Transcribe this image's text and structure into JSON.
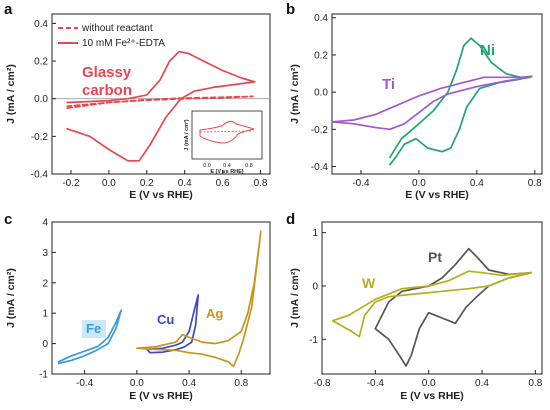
{
  "chart_data": [
    {
      "type": "line",
      "panel": "a",
      "xlabel": "E (V vs RHE)",
      "ylabel": "J (mA / cm²)",
      "xlim": [
        -0.3,
        0.85
      ],
      "ylim": [
        -0.4,
        0.45
      ],
      "xticks": [
        -0.2,
        0.0,
        0.2,
        0.4,
        0.6,
        0.8
      ],
      "xtick_labels": [
        "-0.2",
        "0.0",
        "0.2",
        "0.4",
        "0.6",
        "0.8"
      ],
      "yticks": [
        -0.4,
        -0.2,
        0.0,
        0.2,
        0.4
      ],
      "ytick_labels": [
        "-0.4",
        "-0.2",
        "0.0",
        "0.2",
        "0.4"
      ],
      "legend": [
        "without reactant",
        "10 mM Fe²⁺-EDTA"
      ],
      "annotations": [
        {
          "text": "Glassy",
          "color": "#e8474f"
        },
        {
          "text": "carbon",
          "color": "#e8474f"
        }
      ],
      "inset": {
        "xlabel": "E (V vs RHE)",
        "ylabel": "J (mA / cm²)",
        "xticks": [
          "0.0",
          "0.4",
          "0.8"
        ]
      },
      "series": [
        {
          "name": "without reactant",
          "style": "dashed",
          "color": "#e8474f",
          "points": [
            [
              -0.22,
              -0.05
            ],
            [
              0.0,
              -0.02
            ],
            [
              0.2,
              -0.005
            ],
            [
              0.4,
              0.003
            ],
            [
              0.6,
              0.008
            ],
            [
              0.76,
              0.012
            ],
            [
              0.6,
              0.005
            ],
            [
              0.4,
              0.0
            ],
            [
              0.2,
              -0.008
            ],
            [
              0.0,
              -0.02
            ],
            [
              -0.22,
              -0.04
            ]
          ]
        },
        {
          "name": "10 mM Fe²⁺-EDTA",
          "style": "solid",
          "color": "#e8474f",
          "points": [
            [
              -0.22,
              -0.02
            ],
            [
              -0.1,
              -0.015
            ],
            [
              0.0,
              -0.01
            ],
            [
              0.1,
              0.0
            ],
            [
              0.2,
              0.02
            ],
            [
              0.27,
              0.1
            ],
            [
              0.32,
              0.2
            ],
            [
              0.37,
              0.25
            ],
            [
              0.42,
              0.24
            ],
            [
              0.5,
              0.2
            ],
            [
              0.6,
              0.15
            ],
            [
              0.7,
              0.11
            ],
            [
              0.77,
              0.09
            ],
            [
              0.7,
              0.08
            ],
            [
              0.55,
              0.06
            ],
            [
              0.45,
              0.04
            ],
            [
              0.38,
              0.0
            ],
            [
              0.3,
              -0.1
            ],
            [
              0.22,
              -0.24
            ],
            [
              0.16,
              -0.33
            ],
            [
              0.1,
              -0.33
            ],
            [
              0.0,
              -0.27
            ],
            [
              -0.1,
              -0.2
            ],
            [
              -0.22,
              -0.16
            ]
          ]
        }
      ]
    },
    {
      "type": "line",
      "panel": "b",
      "xlabel": "E (V vs RHE)",
      "ylabel": "J (mA / cm²)",
      "xlim": [
        -0.6,
        0.85
      ],
      "ylim": [
        -0.44,
        0.42
      ],
      "xticks": [
        -0.4,
        0.0,
        0.4,
        0.8
      ],
      "xtick_labels": [
        "-0.4",
        "0.0",
        "0.4",
        "0.8"
      ],
      "yticks": [
        -0.4,
        -0.2,
        0.0,
        0.2,
        0.4
      ],
      "ytick_labels": [
        "-0.4",
        "-0.2",
        "0.0",
        "0.2",
        "0.4"
      ],
      "annotations": [
        {
          "text": "Ni",
          "color": "#1ea671"
        },
        {
          "text": "Ti",
          "color": "#a15acd"
        }
      ],
      "series": [
        {
          "name": "Ni",
          "color": "#1ea671",
          "points": [
            [
              -0.2,
              -0.35
            ],
            [
              -0.12,
              -0.25
            ],
            [
              0.0,
              -0.17
            ],
            [
              0.1,
              -0.1
            ],
            [
              0.2,
              0.0
            ],
            [
              0.26,
              0.12
            ],
            [
              0.31,
              0.25
            ],
            [
              0.36,
              0.29
            ],
            [
              0.42,
              0.25
            ],
            [
              0.5,
              0.16
            ],
            [
              0.6,
              0.1
            ],
            [
              0.7,
              0.08
            ],
            [
              0.78,
              0.085
            ],
            [
              0.7,
              0.07
            ],
            [
              0.55,
              0.05
            ],
            [
              0.42,
              0.02
            ],
            [
              0.33,
              -0.08
            ],
            [
              0.28,
              -0.2
            ],
            [
              0.22,
              -0.3
            ],
            [
              0.16,
              -0.32
            ],
            [
              0.06,
              -0.3
            ],
            [
              -0.02,
              -0.25
            ],
            [
              -0.1,
              -0.28
            ],
            [
              -0.16,
              -0.35
            ],
            [
              -0.2,
              -0.39
            ]
          ]
        },
        {
          "name": "Ti",
          "color": "#a15acd",
          "points": [
            [
              -0.6,
              -0.16
            ],
            [
              -0.45,
              -0.15
            ],
            [
              -0.3,
              -0.12
            ],
            [
              -0.15,
              -0.07
            ],
            [
              0.0,
              -0.02
            ],
            [
              0.15,
              0.02
            ],
            [
              0.3,
              0.05
            ],
            [
              0.45,
              0.08
            ],
            [
              0.6,
              0.08
            ],
            [
              0.77,
              0.08
            ],
            [
              0.6,
              0.06
            ],
            [
              0.4,
              0.03
            ],
            [
              0.2,
              -0.01
            ],
            [
              0.1,
              -0.05
            ],
            [
              0.0,
              -0.11
            ],
            [
              -0.1,
              -0.17
            ],
            [
              -0.2,
              -0.2
            ],
            [
              -0.3,
              -0.19
            ],
            [
              -0.45,
              -0.17
            ],
            [
              -0.6,
              -0.16
            ]
          ]
        }
      ]
    },
    {
      "type": "line",
      "panel": "c",
      "xlabel": "E (V vs RHE)",
      "ylabel": "J (mA / cm²)",
      "xlim": [
        -0.65,
        1.02
      ],
      "ylim": [
        -1.0,
        4.0
      ],
      "xticks": [
        -0.4,
        0.0,
        0.4,
        0.8
      ],
      "xtick_labels": [
        "-0.4",
        "0.0",
        "0.4",
        "0.8"
      ],
      "yticks": [
        -1,
        0,
        1,
        2,
        3,
        4
      ],
      "ytick_labels": [
        "-1",
        "0",
        "1",
        "2",
        "3",
        "4"
      ],
      "annotations": [
        {
          "text": "Fe",
          "color": "#3a9ad9"
        },
        {
          "text": "Cu",
          "color": "#3d47c8"
        },
        {
          "text": "Ag",
          "color": "#c8941a"
        }
      ],
      "series": [
        {
          "name": "Fe",
          "color": "#3a9ad9",
          "points": [
            [
              -0.6,
              -0.6
            ],
            [
              -0.5,
              -0.4
            ],
            [
              -0.4,
              -0.25
            ],
            [
              -0.3,
              -0.1
            ],
            [
              -0.22,
              0.2
            ],
            [
              -0.16,
              0.7
            ],
            [
              -0.12,
              1.1
            ],
            [
              -0.16,
              0.5
            ],
            [
              -0.22,
              0.0
            ],
            [
              -0.3,
              -0.2
            ],
            [
              -0.4,
              -0.4
            ],
            [
              -0.5,
              -0.55
            ],
            [
              -0.6,
              -0.65
            ]
          ]
        },
        {
          "name": "Cu",
          "color": "#3d47c8",
          "points": [
            [
              0.1,
              -0.18
            ],
            [
              0.2,
              -0.15
            ],
            [
              0.3,
              -0.05
            ],
            [
              0.35,
              0.05
            ],
            [
              0.4,
              0.4
            ],
            [
              0.44,
              1.1
            ],
            [
              0.47,
              1.6
            ],
            [
              0.45,
              0.6
            ],
            [
              0.42,
              0.05
            ],
            [
              0.36,
              -0.12
            ],
            [
              0.3,
              -0.2
            ],
            [
              0.2,
              -0.28
            ],
            [
              0.1,
              -0.3
            ],
            [
              0.08,
              -0.2
            ]
          ]
        },
        {
          "name": "Ag",
          "color": "#c8941a",
          "points": [
            [
              0.0,
              -0.15
            ],
            [
              0.15,
              -0.1
            ],
            [
              0.3,
              0.05
            ],
            [
              0.35,
              0.3
            ],
            [
              0.4,
              0.2
            ],
            [
              0.5,
              0.05
            ],
            [
              0.6,
              0.0
            ],
            [
              0.7,
              0.1
            ],
            [
              0.8,
              0.4
            ],
            [
              0.85,
              1.0
            ],
            [
              0.9,
              2.0
            ],
            [
              0.95,
              3.7
            ],
            [
              0.92,
              2.6
            ],
            [
              0.88,
              1.2
            ],
            [
              0.82,
              0.2
            ],
            [
              0.78,
              -0.35
            ],
            [
              0.74,
              -0.75
            ],
            [
              0.7,
              -0.6
            ],
            [
              0.6,
              -0.45
            ],
            [
              0.5,
              -0.35
            ],
            [
              0.4,
              -0.3
            ],
            [
              0.3,
              -0.22
            ],
            [
              0.2,
              -0.2
            ],
            [
              0.1,
              -0.18
            ],
            [
              0.0,
              -0.15
            ]
          ]
        }
      ]
    },
    {
      "type": "line",
      "panel": "d",
      "xlabel": "E (V vs RHE)",
      "ylabel": "J (mA / cm²)",
      "xlim": [
        -0.8,
        0.85
      ],
      "ylim": [
        -1.65,
        1.2
      ],
      "xticks": [
        -0.8,
        -0.4,
        0.0,
        0.4,
        0.8
      ],
      "xtick_labels": [
        "-0.8",
        "-0.4",
        "0.0",
        "0.4",
        "0.8"
      ],
      "yticks": [
        -1,
        0,
        1
      ],
      "ytick_labels": [
        "-1",
        "0",
        "1"
      ],
      "annotations": [
        {
          "text": "W",
          "color": "#b6ad1b"
        },
        {
          "text": "Pt",
          "color": "#555555"
        }
      ],
      "series": [
        {
          "name": "Pt",
          "color": "#555555",
          "points": [
            [
              -0.4,
              -0.8
            ],
            [
              -0.3,
              -0.3
            ],
            [
              -0.2,
              -0.1
            ],
            [
              0.0,
              0.0
            ],
            [
              0.1,
              0.15
            ],
            [
              0.2,
              0.4
            ],
            [
              0.3,
              0.7
            ],
            [
              0.36,
              0.55
            ],
            [
              0.45,
              0.3
            ],
            [
              0.6,
              0.22
            ],
            [
              0.77,
              0.25
            ],
            [
              0.6,
              0.15
            ],
            [
              0.45,
              0.0
            ],
            [
              0.36,
              -0.2
            ],
            [
              0.28,
              -0.4
            ],
            [
              0.2,
              -0.7
            ],
            [
              0.1,
              -0.6
            ],
            [
              0.0,
              -0.5
            ],
            [
              -0.07,
              -0.8
            ],
            [
              -0.13,
              -1.3
            ],
            [
              -0.17,
              -1.5
            ],
            [
              -0.22,
              -1.3
            ],
            [
              -0.3,
              -1.0
            ],
            [
              -0.4,
              -0.8
            ]
          ]
        },
        {
          "name": "W",
          "color": "#b6ad1b",
          "points": [
            [
              -0.72,
              -0.65
            ],
            [
              -0.6,
              -0.55
            ],
            [
              -0.5,
              -0.4
            ],
            [
              -0.4,
              -0.25
            ],
            [
              -0.2,
              -0.05
            ],
            [
              0.0,
              0.0
            ],
            [
              0.15,
              0.1
            ],
            [
              0.3,
              0.28
            ],
            [
              0.4,
              0.25
            ],
            [
              0.55,
              0.2
            ],
            [
              0.77,
              0.25
            ],
            [
              0.6,
              0.15
            ],
            [
              0.45,
              0.0
            ],
            [
              0.3,
              -0.05
            ],
            [
              0.1,
              -0.1
            ],
            [
              -0.1,
              -0.15
            ],
            [
              -0.3,
              -0.2
            ],
            [
              -0.4,
              -0.3
            ],
            [
              -0.48,
              -0.55
            ],
            [
              -0.52,
              -0.95
            ],
            [
              -0.58,
              -0.85
            ],
            [
              -0.65,
              -0.75
            ],
            [
              -0.72,
              -0.65
            ]
          ]
        }
      ]
    }
  ]
}
